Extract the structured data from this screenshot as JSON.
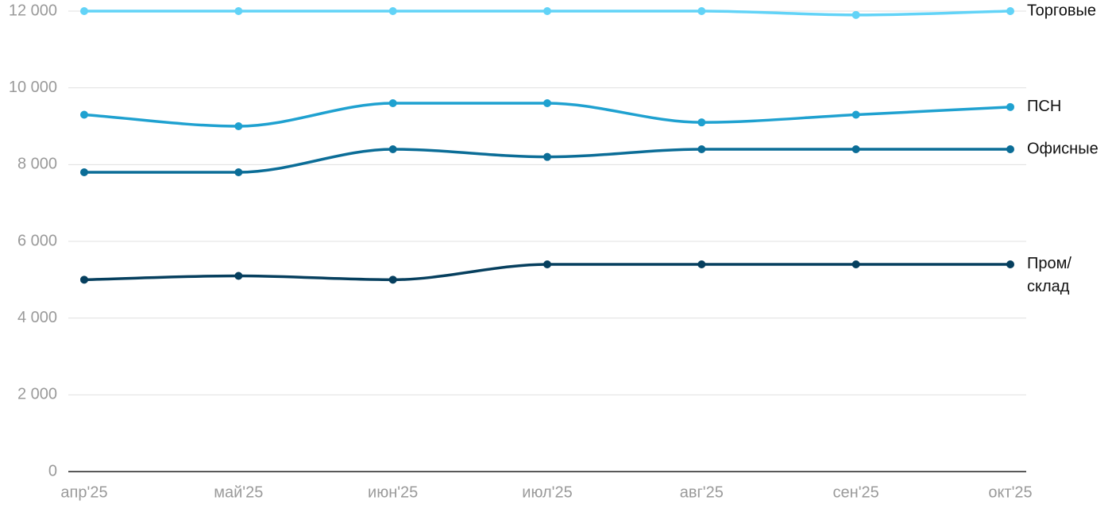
{
  "chart_data": {
    "type": "line",
    "categories": [
      "апр'25",
      "май'25",
      "июн'25",
      "июл'25",
      "авг'25",
      "сен'25",
      "окт'25"
    ],
    "series": [
      {
        "name": "Торговые",
        "color": "#62d3f7",
        "values": [
          12000,
          12000,
          12000,
          12000,
          12000,
          11900,
          12000
        ]
      },
      {
        "name": "ПСН",
        "color": "#1fa1d0",
        "values": [
          9300,
          9000,
          9600,
          9600,
          9100,
          9300,
          9500
        ]
      },
      {
        "name": "Офисные",
        "color": "#0b6d97",
        "values": [
          7800,
          7800,
          8400,
          8200,
          8400,
          8400,
          8400
        ]
      },
      {
        "name": "Пром/склад",
        "color": "#063f5e",
        "values": [
          5000,
          5100,
          5000,
          5400,
          5400,
          5400,
          5400
        ]
      }
    ],
    "ylim": [
      0,
      12000
    ],
    "yticks": [
      0,
      {
        "value": 2000,
        "label": "2 000"
      },
      {
        "value": 4000,
        "label": "4 000"
      },
      {
        "value": 6000,
        "label": "6 000"
      },
      {
        "value": 8000,
        "label": "8 000"
      },
      {
        "value": 10000,
        "label": "10 000"
      },
      {
        "value": 12000,
        "label": "12 000"
      }
    ],
    "grid": true
  }
}
